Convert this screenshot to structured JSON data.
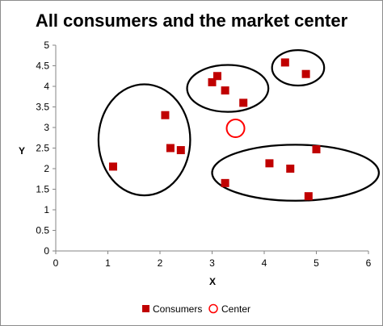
{
  "chart_data": {
    "type": "scatter",
    "title": "All consumers and the market center",
    "xlabel": "X",
    "ylabel": "Y",
    "xlim": [
      0,
      6
    ],
    "ylim": [
      0,
      5
    ],
    "x_ticks": [
      "0",
      "1",
      "2",
      "3",
      "4",
      "5",
      "6"
    ],
    "y_ticks": [
      "0",
      "0.5",
      "1",
      "1.5",
      "2",
      "2.5",
      "3",
      "3.5",
      "4",
      "4.5",
      "5"
    ],
    "grid": false,
    "legend_position": "bottom",
    "series": [
      {
        "name": "Consumers",
        "marker": "square",
        "color": "#c00000",
        "points": [
          {
            "x": 1.1,
            "y": 2.05
          },
          {
            "x": 2.1,
            "y": 3.3
          },
          {
            "x": 2.2,
            "y": 2.5
          },
          {
            "x": 2.4,
            "y": 2.45
          },
          {
            "x": 3.0,
            "y": 4.1
          },
          {
            "x": 3.1,
            "y": 4.25
          },
          {
            "x": 3.25,
            "y": 3.9
          },
          {
            "x": 3.6,
            "y": 3.6
          },
          {
            "x": 4.4,
            "y": 4.58
          },
          {
            "x": 4.8,
            "y": 4.3
          },
          {
            "x": 3.25,
            "y": 1.65
          },
          {
            "x": 4.1,
            "y": 2.13
          },
          {
            "x": 4.5,
            "y": 2.0
          },
          {
            "x": 4.85,
            "y": 1.33
          },
          {
            "x": 5.0,
            "y": 2.47
          }
        ]
      },
      {
        "name": "Center",
        "marker": "circle-open",
        "color": "#ff0000",
        "points": [
          {
            "x": 3.45,
            "y": 2.98
          }
        ]
      }
    ],
    "annotations": {
      "cluster_ellipses": [
        {
          "cx": 1.7,
          "cy": 2.7,
          "rx": 0.88,
          "ry": 1.35
        },
        {
          "cx": 3.3,
          "cy": 3.95,
          "rx": 0.78,
          "ry": 0.57
        },
        {
          "cx": 4.65,
          "cy": 4.45,
          "rx": 0.5,
          "ry": 0.43
        },
        {
          "cx": 4.6,
          "cy": 1.9,
          "rx": 1.6,
          "ry": 0.68
        }
      ]
    }
  }
}
